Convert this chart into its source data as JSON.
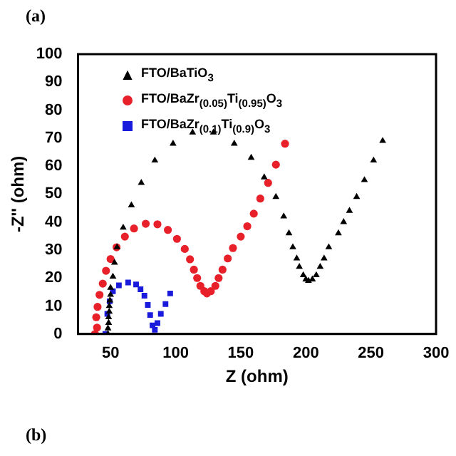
{
  "chart_data": {
    "type": "scatter",
    "xlabel": "Z (ohm)",
    "ylabel": "-Z'' (ohm)",
    "xlim": [
      25,
      300
    ],
    "ylim": [
      0,
      100
    ],
    "xticks": [
      50,
      100,
      150,
      200,
      250,
      300
    ],
    "yticks": [
      0,
      10,
      20,
      30,
      40,
      50,
      60,
      70,
      80,
      90,
      100
    ],
    "grid": false,
    "legend": "top left",
    "annotations": [
      "(a)",
      "(b)"
    ],
    "series": [
      {
        "name": "FTO/BaTiO$_{3}$",
        "color": "#000000",
        "marker": "triangle",
        "x": [
          48,
          48,
          48.5,
          48.5,
          49,
          49,
          49.5,
          50,
          50,
          51.8,
          53,
          55,
          59.7,
          66,
          73.6,
          84,
          98,
          113,
          129,
          145,
          158,
          168,
          177,
          183,
          187,
          190,
          193,
          195,
          198,
          200,
          202,
          205,
          208,
          211,
          214,
          217.6,
          225,
          229,
          233.5,
          239,
          245,
          252,
          259
        ],
        "values": [
          0,
          2,
          4,
          6,
          8,
          10,
          12,
          14,
          16.5,
          20.5,
          25.5,
          31,
          38,
          46,
          54,
          62,
          68,
          72,
          72,
          68,
          63,
          56,
          49,
          42,
          36,
          31,
          27,
          24,
          21,
          19.5,
          19,
          19.5,
          21,
          24,
          27,
          31,
          36,
          40,
          44,
          49,
          55,
          62,
          69
        ]
      },
      {
        "name": "FTO/BaZr$_{(0.05)}$Ti$_{(0.95)}$O$_{3}$",
        "color": "#e8202a",
        "marker": "circle",
        "x": [
          38,
          39,
          39.6,
          40,
          41.5,
          44,
          46.5,
          50,
          54.6,
          61,
          68,
          77,
          86,
          94,
          101,
          107,
          111,
          114,
          116.5,
          119,
          122,
          124,
          127,
          130.5,
          133,
          136,
          140,
          144,
          150,
          155,
          160,
          165,
          171,
          177,
          184
        ],
        "values": [
          0,
          6,
          2.3,
          9.7,
          14,
          18,
          22.6,
          26.8,
          31,
          34.8,
          37.7,
          39.4,
          39.2,
          37.2,
          34,
          30.4,
          26.7,
          23,
          20,
          17.2,
          15.3,
          14.5,
          15.3,
          17.2,
          20,
          23,
          27,
          30.7,
          34.8,
          38.5,
          43,
          48.4,
          54,
          60.5,
          68
        ]
      },
      {
        "name": "FTO/BaZr$_{(0.1)}$Ti$_{(0.9)}$O$_{3}$",
        "color": "#1a1adc",
        "marker": "square",
        "x": [
          46,
          47.5,
          49.3,
          51.8,
          56.4,
          63.5,
          69.6,
          73,
          76,
          78.6,
          80.4,
          82.2,
          84,
          86,
          88.6,
          92.2,
          95.8
        ],
        "values": [
          0,
          7.2,
          11.7,
          15.3,
          17.4,
          18.4,
          17.7,
          16,
          13.7,
          10.4,
          6.8,
          3.1,
          1.5,
          3.9,
          7.2,
          10.7,
          14.5
        ]
      }
    ]
  }
}
